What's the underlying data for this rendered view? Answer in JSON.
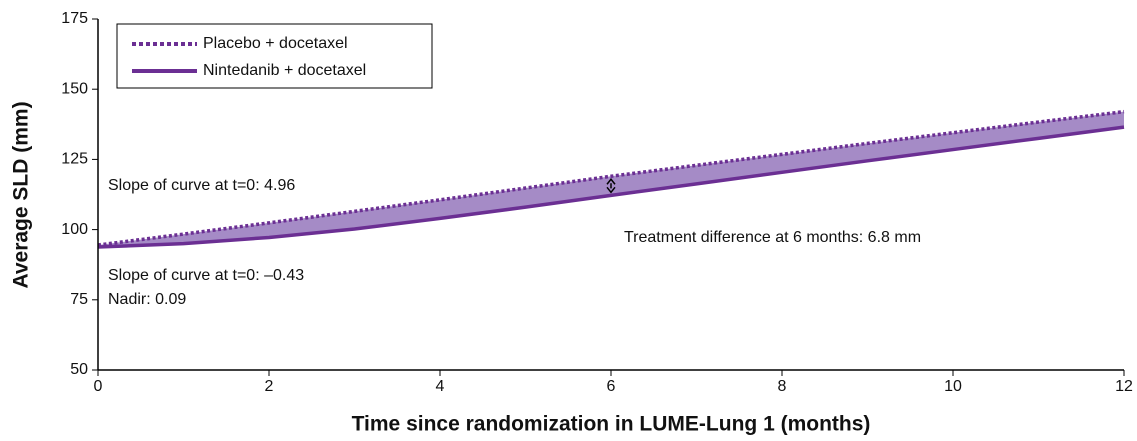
{
  "chart_data": {
    "type": "line",
    "x_label": "Time since randomization in LUME-Lung 1 (months)",
    "y_label": "Average SLD (mm)",
    "x": [
      0,
      1,
      2,
      3,
      4,
      5,
      6,
      7,
      8,
      9,
      10,
      11,
      12
    ],
    "series": [
      {
        "name": "Placebo + docetaxel",
        "color": "#6b2f93",
        "line_style": "dotted",
        "values": [
          94.5,
          98.4,
          102.4,
          106.5,
          110.6,
          114.8,
          119,
          122.9,
          126.8,
          130.7,
          134.5,
          138.3,
          142
        ]
      },
      {
        "name": "Nintedanib + docetaxel",
        "color": "#6b2f93",
        "line_style": "solid",
        "values": [
          93.8,
          95,
          97.2,
          100.2,
          104,
          108,
          112.2,
          116.3,
          120.4,
          124.5,
          128.5,
          132.5,
          136.5
        ]
      }
    ],
    "fill_between_color": "#a58bc6",
    "annotations": [
      "Slope of curve at t=0: 4.96",
      "Treatment difference at 6 months: 6.8 mm",
      "Slope of curve at t=0: –0.43",
      "Nadir: 0.09"
    ],
    "xlim": [
      0,
      12
    ],
    "xticks": [
      0,
      2,
      4,
      6,
      8,
      10,
      12
    ],
    "ylim": [
      50,
      175
    ],
    "yticks": [
      50,
      75,
      100,
      125,
      150,
      175
    ],
    "legend": "upper left"
  }
}
